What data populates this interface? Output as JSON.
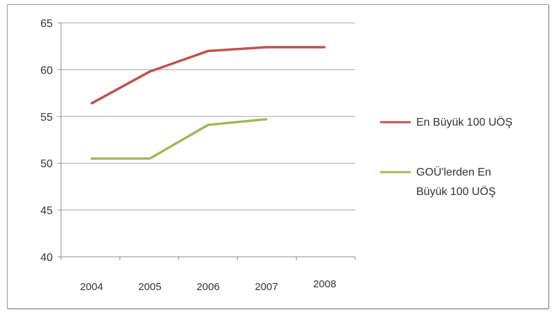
{
  "chart_data": {
    "type": "line",
    "categories": [
      "2004",
      "2005",
      "2006",
      "2007",
      "2008"
    ],
    "series": [
      {
        "name": "En Büyük 100 UÖŞ",
        "values": [
          56.4,
          59.8,
          62.0,
          62.4,
          62.4
        ],
        "color": "#c0504d"
      },
      {
        "name": "GOÜ'lerden En Büyük 100 UÖŞ",
        "values": [
          50.5,
          50.5,
          54.1,
          54.7,
          null
        ],
        "color": "#9bbb59"
      }
    ],
    "yticks": [
      "40",
      "45",
      "50",
      "55",
      "60",
      "65"
    ],
    "ylim": [
      40,
      65
    ],
    "grid": true,
    "legend_position": "right"
  }
}
